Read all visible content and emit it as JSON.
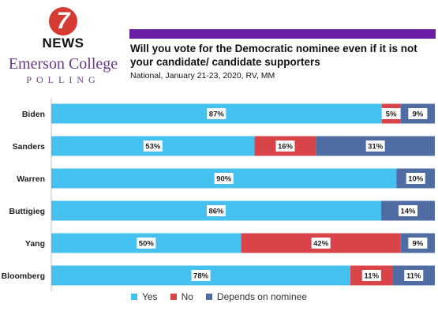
{
  "branding": {
    "station_number": "7",
    "station_name": "NEWS",
    "org_name": "Emerson College",
    "org_sub": "POLLING"
  },
  "colors": {
    "yes": "#45c1ef",
    "no": "#d94449",
    "depends": "#4f6da2",
    "title_bar": "#6a1fa6",
    "brand_purple": "#6a3a8c"
  },
  "chart_data": {
    "type": "bar",
    "orientation": "horizontal",
    "stacked": true,
    "title": "Will you vote for the Democratic nominee even if it is not your candidate/ candidate supporters",
    "subtitle": "National, January 21-23, 2020, RV, MM",
    "categories": [
      "Biden",
      "Sanders",
      "Warren",
      "Buttigieg",
      "Yang",
      "Bloomberg"
    ],
    "series": [
      {
        "name": "Yes",
        "values": [
          87,
          53,
          90,
          86,
          50,
          78
        ]
      },
      {
        "name": "No",
        "values": [
          5,
          16,
          0,
          0,
          42,
          11
        ]
      },
      {
        "name": "Depends on nominee",
        "values": [
          9,
          31,
          10,
          14,
          9,
          11
        ]
      }
    ],
    "value_format": "percent",
    "grid": false,
    "legend_position": "bottom"
  }
}
